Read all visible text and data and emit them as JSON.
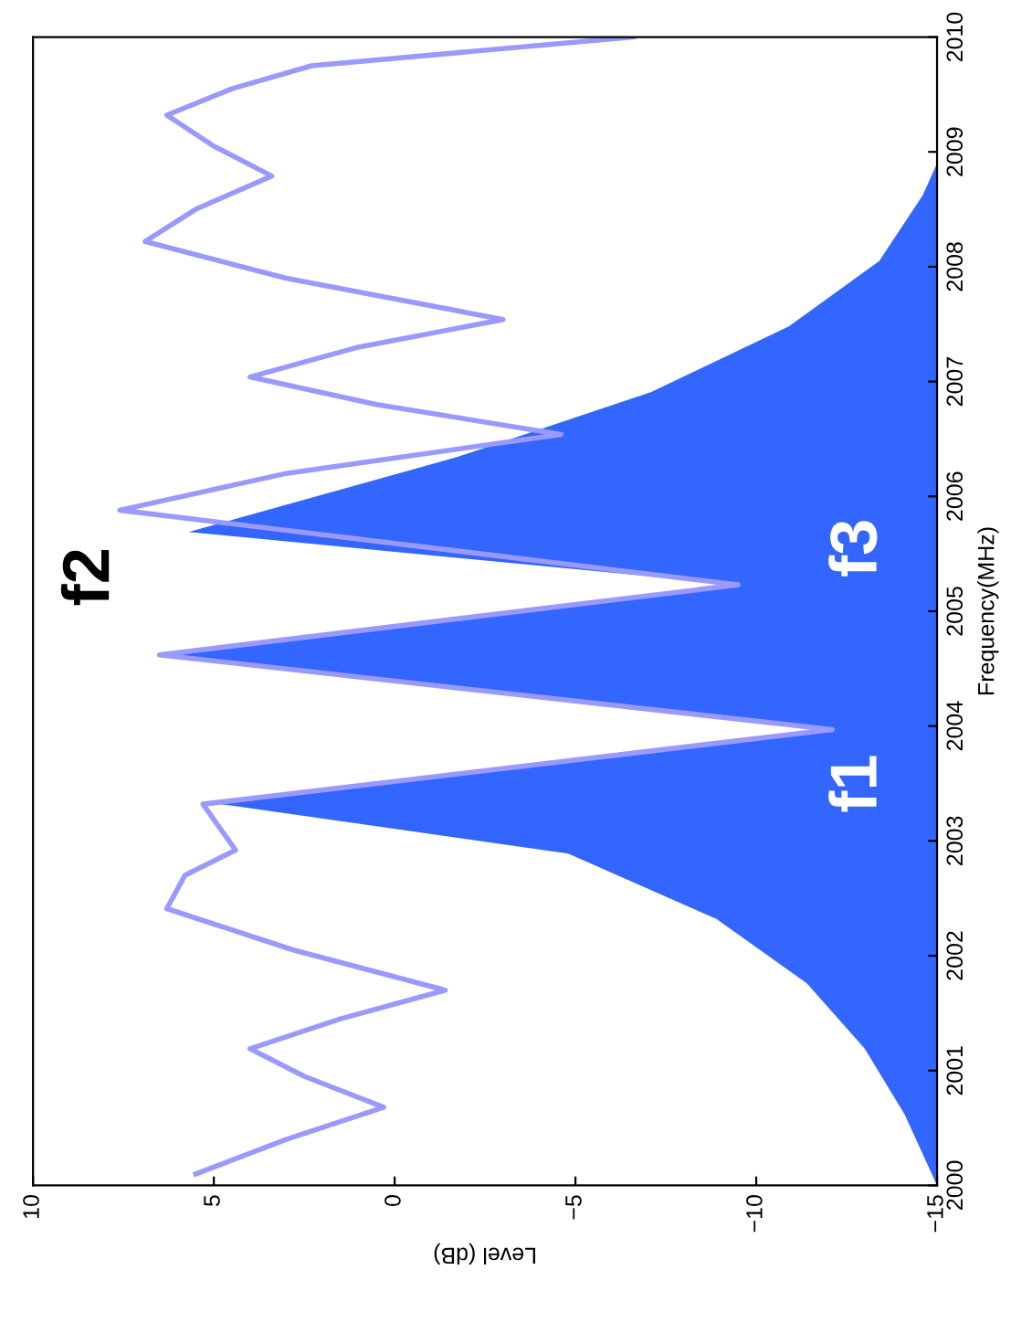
{
  "chart_data": {
    "type": "area",
    "xlabel": "Level (dB)",
    "ylabel": "Frequency(MHz)",
    "xlim": [
      10,
      -15
    ],
    "xticks": [
      10,
      5,
      0,
      -5,
      -10,
      -15
    ],
    "ylim": [
      2000,
      2010
    ],
    "yticks": [
      2000,
      2001,
      2002,
      2003,
      2004,
      2005,
      2006,
      2007,
      2008,
      2009,
      2010
    ],
    "grid": false,
    "series": [
      {
        "color": "#3366ff",
        "x": [
          -15,
          -14.1,
          -13.0,
          -11.4,
          -8.9,
          -4.8,
          4.8,
          -12.1,
          6.4,
          -9.5,
          5.7,
          -1.7,
          -7.1,
          -10.9,
          -13.4,
          -14.6,
          -15
        ],
        "values": [
          2000.0,
          2000.62,
          2001.19,
          2001.76,
          2002.32,
          2002.89,
          2003.32,
          2003.97,
          2004.62,
          2005.23,
          2005.69,
          2006.34,
          2006.91,
          2007.48,
          2008.05,
          2008.62,
          2008.9
        ]
      },
      {
        "type": "line",
        "color": "#9999ff",
        "x": [
          5.5,
          3.0,
          0.3,
          2.5,
          4.0,
          1.5,
          -1.4,
          2.8,
          6.3,
          5.8,
          4.4,
          5.3,
          -12.1,
          6.5,
          -9.5,
          7.6,
          3.0,
          -4.6,
          0.5,
          4.0,
          1.0,
          -3.0,
          3.0,
          6.9,
          5.5,
          3.4,
          5.0,
          6.3,
          4.5,
          2.3,
          -6.6
        ],
        "values": [
          2000.1,
          2000.4,
          2000.68,
          2000.95,
          2001.19,
          2001.45,
          2001.7,
          2002.05,
          2002.41,
          2002.7,
          2002.92,
          2003.32,
          2003.97,
          2004.62,
          2005.23,
          2005.88,
          2006.2,
          2006.54,
          2006.8,
          2007.04,
          2007.3,
          2007.54,
          2007.9,
          2008.22,
          2008.5,
          2008.79,
          2009.05,
          2009.32,
          2009.55,
          2009.75,
          2010.0
        ]
      }
    ],
    "annotations": [
      "f1",
      "f2",
      "f3"
    ]
  }
}
